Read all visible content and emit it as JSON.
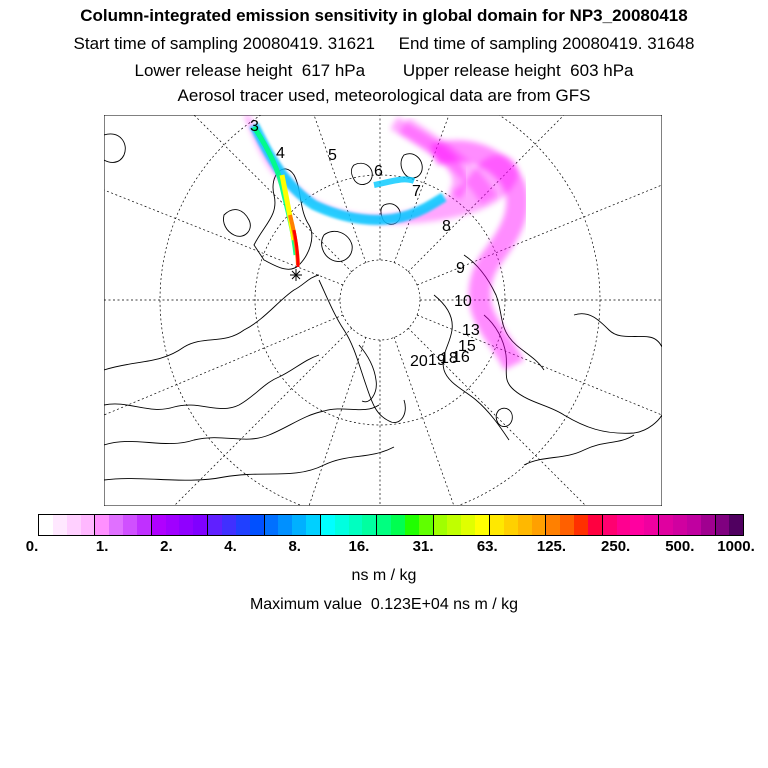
{
  "header": {
    "title": "Column-integrated emission sensitivity in global domain for NP3_20080418",
    "start_time": "Start time of sampling 20080419. 31621",
    "end_time": "End time of sampling 20080419. 31648",
    "lower_height": "Lower release height  617 hPa",
    "upper_height": "Upper release height  603 hPa",
    "tracer_note": "Aerosol tracer used, meteorological data are from GFS"
  },
  "map": {
    "day_labels": [
      "3",
      "4",
      "5",
      "6",
      "7",
      "8",
      "9",
      "10",
      "13",
      "15",
      "16",
      "18",
      "19",
      "20"
    ],
    "release_marker": "release-site-star",
    "plume_colors": [
      "#ff00ff",
      "#00c8ff",
      "#ffff00",
      "#ff0000"
    ]
  },
  "colorbar": {
    "colors": [
      "#ffffff",
      "#ffe8ff",
      "#ffd0ff",
      "#ffb8ff",
      "#ff90ff",
      "#e070ff",
      "#d050ff",
      "#c030ff",
      "#b000ff",
      "#a000ff",
      "#9000ff",
      "#8000ff",
      "#6020ff",
      "#4030ff",
      "#2040ff",
      "#0050ff",
      "#0070ff",
      "#0090ff",
      "#00b0ff",
      "#00d0ff",
      "#00ffff",
      "#00ffe0",
      "#00ffc0",
      "#00ffa0",
      "#00ff80",
      "#00ff50",
      "#20ff00",
      "#60ff00",
      "#a0ff00",
      "#c0ff00",
      "#e0ff00",
      "#ffff00",
      "#ffe800",
      "#ffd000",
      "#ffb800",
      "#ffa000",
      "#ff8000",
      "#ff6000",
      "#ff3000",
      "#ff0040",
      "#ff0070",
      "#ff0090",
      "#ff00a0",
      "#f000a0",
      "#e000a0",
      "#d000a0",
      "#c000a0",
      "#a00090",
      "#800080",
      "#500060"
    ],
    "tick_labels": [
      "0.",
      "1.",
      "2.",
      "4.",
      "8.",
      "16.",
      "31.",
      "63.",
      "125.",
      "250.",
      "500.",
      "1000."
    ],
    "units": "ns m / kg"
  },
  "footer": {
    "max_value": "Maximum value  0.123E+04 ns m / kg"
  }
}
